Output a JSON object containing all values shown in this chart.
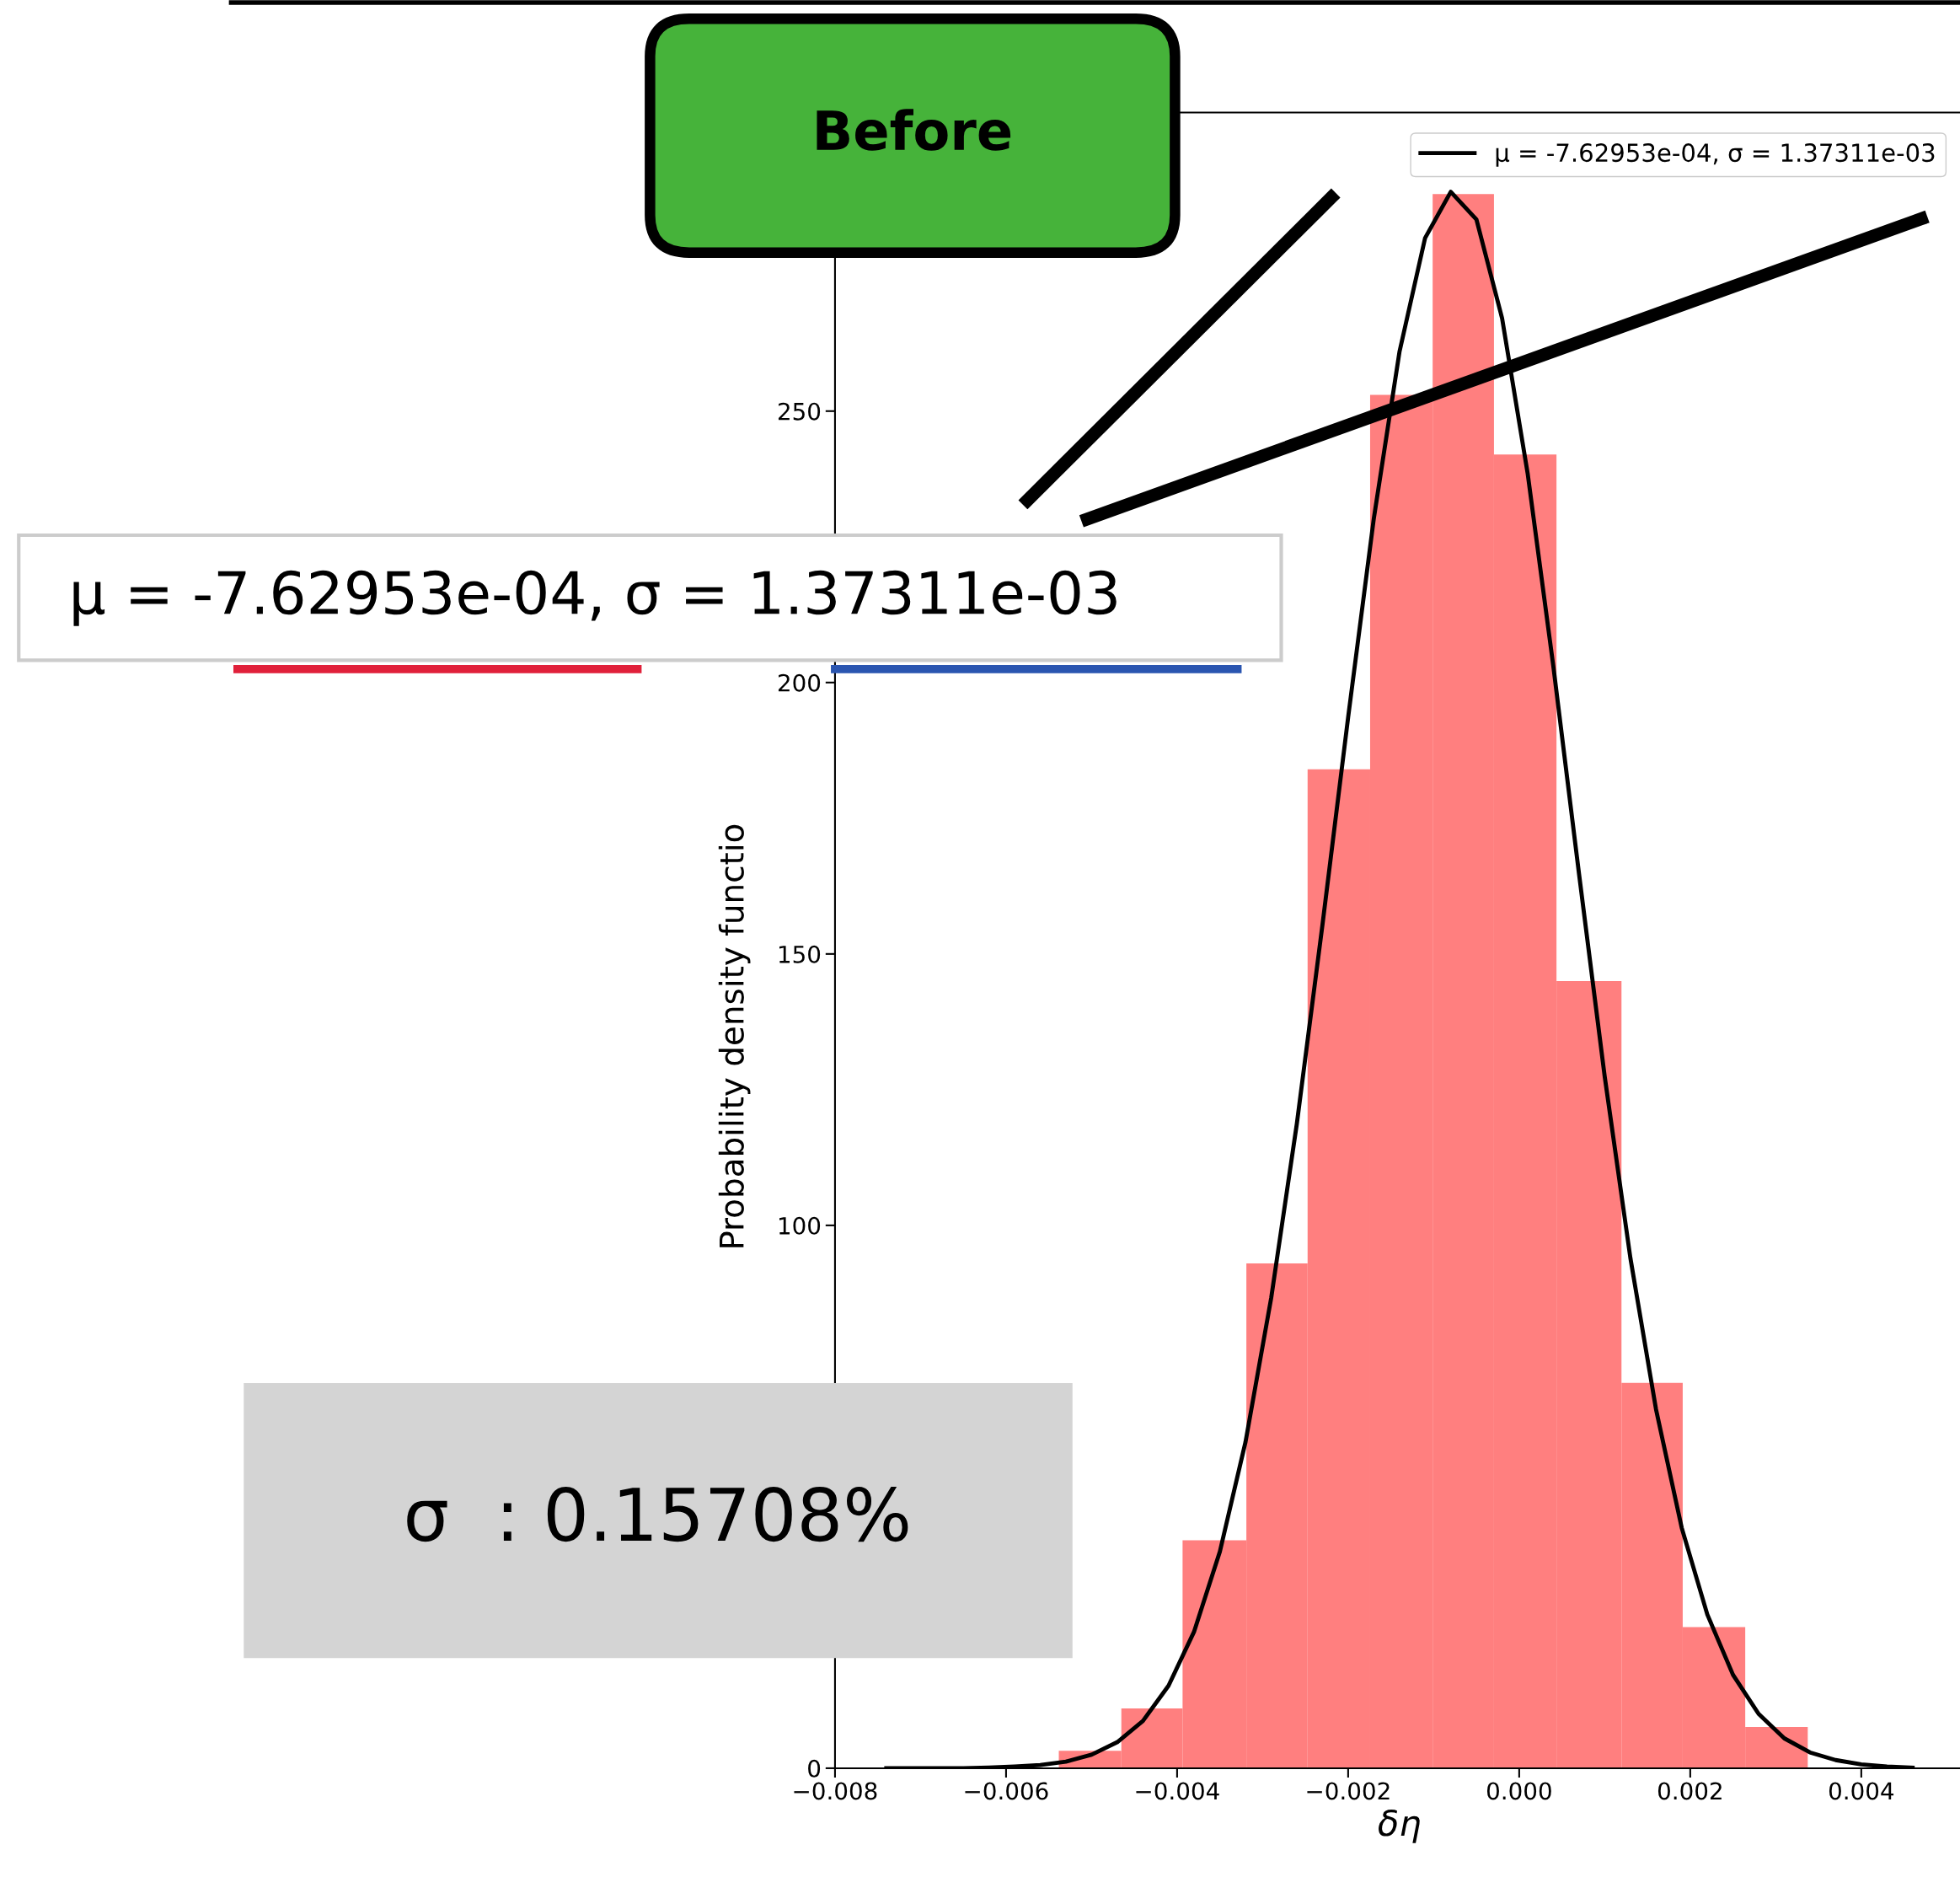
{
  "chart_data": {
    "type": "histogram",
    "bins": [
      -0.005383,
      -0.004652,
      -0.003936,
      -0.00319,
      -0.002474,
      -0.001743,
      -0.001012,
      -0.000295,
      0.000436,
      0.001196,
      0.001912,
      0.002643,
      0.003374
    ],
    "values": [
      3.2,
      11,
      42,
      93,
      184,
      253,
      290,
      242,
      145,
      71,
      26,
      7.6
    ],
    "color": "#ff7f7f",
    "series": [
      {
        "type": "line",
        "name": "μ = -7.62953e-04, σ = 1.37311e-03",
        "color": "#000000",
        "x": [
          -0.0074,
          -0.0071,
          -0.0068,
          -0.0065,
          -0.0062,
          -0.0059,
          -0.0056,
          -0.0053,
          -0.005,
          -0.0047,
          -0.0044,
          -0.0041,
          -0.0038,
          -0.0035,
          -0.0032,
          -0.0029,
          -0.0026,
          -0.0023,
          -0.002,
          -0.0017,
          -0.0014,
          -0.0011,
          -0.0008,
          -0.0005,
          -0.0002,
          0.0001,
          0.0004,
          0.0007,
          0.001,
          0.0013,
          0.0016,
          0.0019,
          0.0022,
          0.0025,
          0.0028,
          0.0031,
          0.0034,
          0.0037,
          0.004,
          0.0043,
          0.0046
        ],
        "values": [
          0,
          0,
          0,
          0,
          0.1,
          0.3,
          0.6,
          1.2,
          2.5,
          4.8,
          8.7,
          15.2,
          25.2,
          39.9,
          60.1,
          86.6,
          118.7,
          155.4,
          193.6,
          230.2,
          260.9,
          281.9,
          290.4,
          285.3,
          267.1,
          238.4,
          202.9,
          164.7,
          127.4,
          94.0,
          66.1,
          44.3,
          28.3,
          17.2,
          10.0,
          5.5,
          2.9,
          1.5,
          0.7,
          0.3,
          0.1
        ]
      }
    ],
    "xlabel": "δη",
    "ylabel": "Probability density functio",
    "xlim": [
      -0.008,
      0.0052
    ],
    "ylim": [
      0,
      305
    ],
    "xticks": [
      {
        "value": -0.008,
        "label": "−0.008"
      },
      {
        "value": -0.006,
        "label": "−0.006"
      },
      {
        "value": -0.004,
        "label": "−0.004"
      },
      {
        "value": -0.002,
        "label": "−0.002"
      },
      {
        "value": 0,
        "label": "0.000"
      },
      {
        "value": 0.002,
        "label": "0.002"
      },
      {
        "value": 0.004,
        "label": "0.004"
      }
    ],
    "yticks": [
      0,
      {
        "value": 50,
        "label": null
      },
      100,
      150,
      200,
      250
    ],
    "legend": "top right",
    "grid": false,
    "annotations": [
      "Before",
      "μ = -7.62953e-04, σ = 1.37311e-03",
      "σ  : 0.15708%"
    ]
  }
}
